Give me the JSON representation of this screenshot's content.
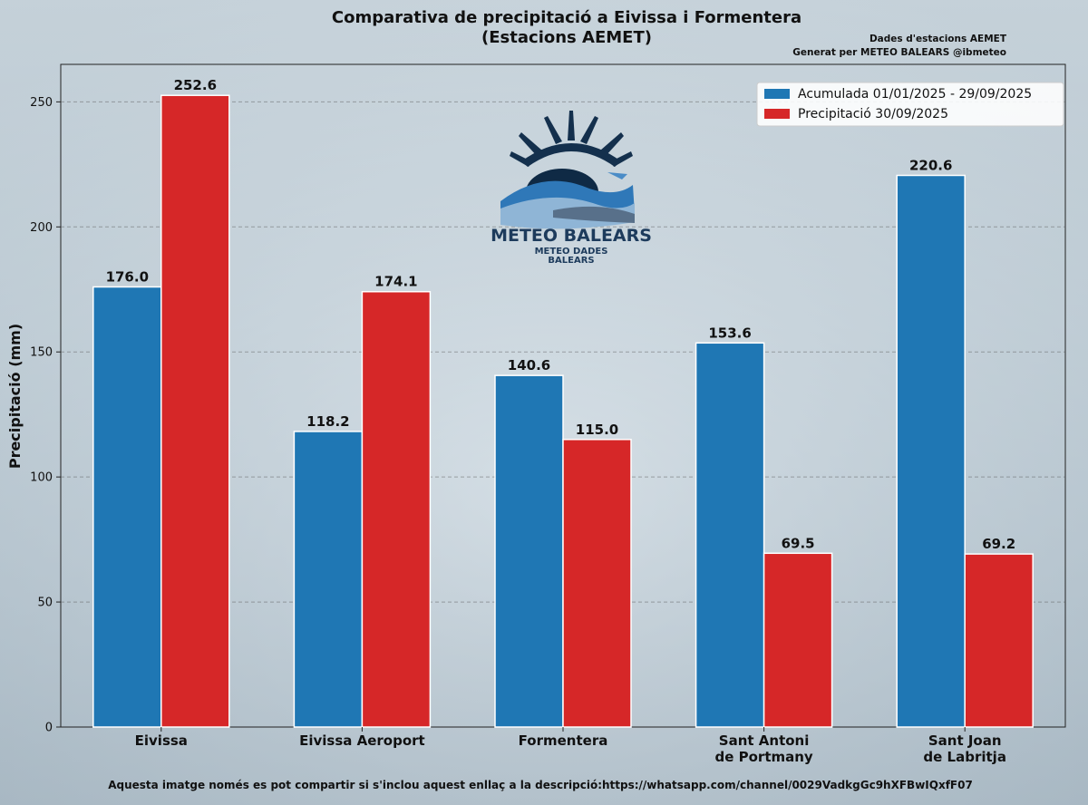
{
  "chart_data": {
    "type": "bar",
    "title_lines": [
      "Comparativa de precipitació a Eivissa i Formentera",
      "(Estacions AEMET)"
    ],
    "credits": [
      "Dades d'estacions AEMET",
      "Generat per METEO BALEARS @ibmeteo"
    ],
    "ylabel": "Precipitació (mm)",
    "xlabel": "",
    "ylim": [
      0,
      265
    ],
    "yticks": [
      0,
      50,
      100,
      150,
      200,
      250
    ],
    "grid": "horizontal-dashed",
    "legend_position": "top-right",
    "categories": [
      [
        "Eivissa"
      ],
      [
        "Eivissa Aeroport"
      ],
      [
        "Formentera"
      ],
      [
        "Sant Antoni",
        "de Portmany"
      ],
      [
        "Sant Joan",
        "de Labritja"
      ]
    ],
    "series": [
      {
        "name": "Acumulada 01/01/2025 - 29/09/2025",
        "color": "#1f77b4",
        "values": [
          176.0,
          118.2,
          140.6,
          153.6,
          220.6
        ]
      },
      {
        "name": "Precipitació 30/09/2025",
        "color": "#d62728",
        "values": [
          252.6,
          174.1,
          115.0,
          69.5,
          69.2
        ]
      }
    ],
    "value_labels": [
      [
        "176.0",
        "118.2",
        "140.6",
        "153.6",
        "220.6"
      ],
      [
        "252.6",
        "174.1",
        "115.0",
        "69.5",
        "69.2"
      ]
    ]
  },
  "logo": {
    "title": "METEO BALEARS",
    "subtitle_lines": [
      "METEO DADES",
      "BALEARS"
    ]
  },
  "footer": "Aquesta imatge només es pot compartir si s'inclou aquest enllaç a la descripció:https://whatsapp.com/channel/0029VadkgGc9hXFBwIQxfF07"
}
